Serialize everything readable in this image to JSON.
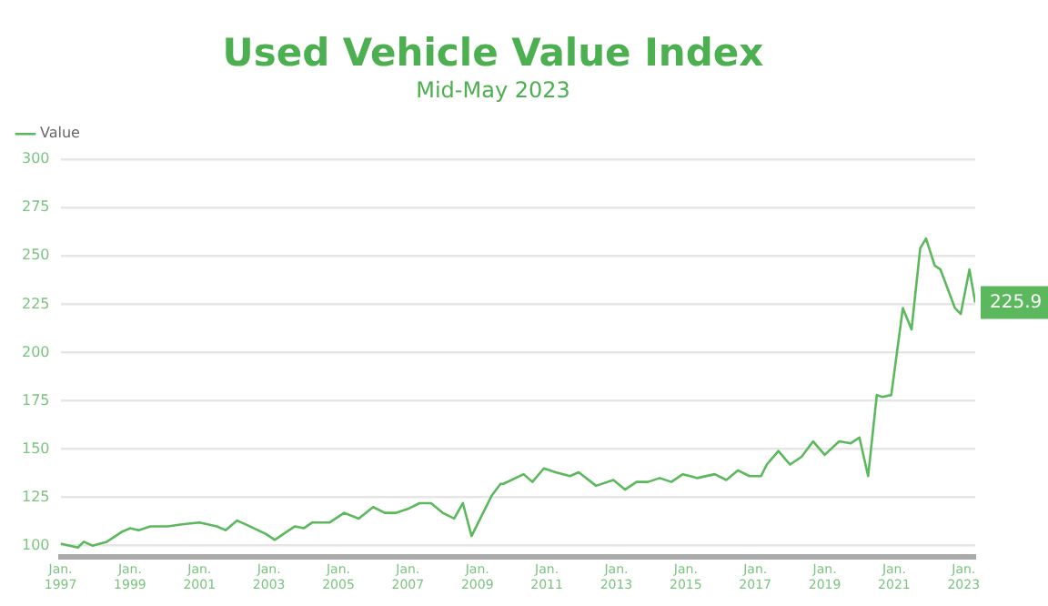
{
  "chart_data": {
    "type": "line",
    "title": "Used Vehicle Value Index",
    "subtitle": "Mid-May 2023",
    "x": [
      "1997-01",
      "1997-07",
      "1997-09",
      "1997-12",
      "1998-05",
      "1998-10",
      "1999-01",
      "1999-04",
      "1999-08",
      "2000-02",
      "2000-07",
      "2001-01",
      "2001-07",
      "2001-10",
      "2002-02",
      "2002-05",
      "2002-12",
      "2003-03",
      "2003-06",
      "2003-10",
      "2004-01",
      "2004-04",
      "2004-10",
      "2005-03",
      "2005-08",
      "2006-01",
      "2006-05",
      "2006-09",
      "2007-01",
      "2007-05",
      "2007-09",
      "2008-01",
      "2008-05",
      "2008-08",
      "2008-11",
      "2009-02",
      "2009-06",
      "2009-09",
      "2009-10",
      "2010-05",
      "2010-08",
      "2010-12",
      "2011-04",
      "2011-09",
      "2011-12",
      "2012-06",
      "2012-12",
      "2013-04",
      "2013-08",
      "2013-12",
      "2014-04",
      "2014-08",
      "2014-12",
      "2015-05",
      "2015-11",
      "2016-03",
      "2016-07",
      "2016-11",
      "2017-03",
      "2017-05",
      "2017-09",
      "2018-01",
      "2018-05",
      "2018-09",
      "2019-01",
      "2019-06",
      "2019-10",
      "2020-01",
      "2020-04",
      "2020-07",
      "2020-09",
      "2020-12",
      "2021-04",
      "2021-07",
      "2021-10",
      "2021-12",
      "2022-03",
      "2022-05",
      "2022-10",
      "2022-12",
      "2023-03",
      "2023-05"
    ],
    "series": [
      {
        "name": "Value",
        "color": "#5cb85c",
        "values": [
          101,
          99,
          102,
          100,
          102,
          107,
          109,
          108,
          110,
          110,
          111,
          112,
          110,
          108,
          113,
          111,
          106,
          103,
          106,
          110,
          109,
          112,
          112,
          117,
          114,
          120,
          117,
          117,
          119,
          122,
          122,
          117,
          114,
          122,
          105,
          114,
          126,
          132,
          132,
          137,
          133,
          140,
          138,
          136,
          138,
          131,
          134,
          129,
          133,
          133,
          135,
          133,
          137,
          135,
          137,
          134,
          139,
          136,
          136,
          142,
          149,
          142,
          146,
          154,
          147,
          154,
          153,
          156,
          136,
          178,
          177,
          178,
          223,
          212,
          254,
          259,
          245,
          243,
          223,
          220,
          243,
          225.9
        ],
        "value_labels": [
          null,
          null,
          null,
          null,
          null,
          null,
          null,
          null,
          null,
          null,
          null,
          null,
          null,
          null,
          null,
          null,
          null,
          null,
          null,
          null,
          null,
          null,
          null,
          null,
          null,
          null,
          null,
          null,
          null,
          null,
          null,
          null,
          null,
          null,
          null,
          null,
          null,
          null,
          null,
          null,
          null,
          null,
          null,
          null,
          null,
          null,
          null,
          null,
          null,
          null,
          null,
          null,
          null,
          null,
          null,
          null,
          null,
          null,
          null,
          null,
          null,
          null,
          null,
          null,
          null,
          null,
          null,
          null,
          null,
          null,
          null,
          null,
          null,
          null,
          null,
          null,
          null,
          null,
          null,
          null,
          null,
          "225.9"
        ]
      }
    ],
    "xlim": [
      "1997-01",
      "2023-05"
    ],
    "xticks": [
      {
        "value": "1997-01",
        "label": "Jan. 1997"
      },
      {
        "value": "1999-01",
        "label": "Jan. 1999"
      },
      {
        "value": "2001-01",
        "label": "Jan. 2001"
      },
      {
        "value": "2003-01",
        "label": "Jan. 2003"
      },
      {
        "value": "2005-01",
        "label": "Jan. 2005"
      },
      {
        "value": "2007-01",
        "label": "Jan. 2007"
      },
      {
        "value": "2009-01",
        "label": "Jan. 2009"
      },
      {
        "value": "2011-01",
        "label": "Jan. 2011"
      },
      {
        "value": "2013-01",
        "label": "Jan. 2013"
      },
      {
        "value": "2015-01",
        "label": "Jan. 2015"
      },
      {
        "value": "2017-01",
        "label": "Jan. 2017"
      },
      {
        "value": "2019-01",
        "label": "Jan. 2019"
      },
      {
        "value": "2021-01",
        "label": "Jan. 2021"
      },
      {
        "value": "2023-01",
        "label": "Jan. 2023"
      }
    ],
    "ylim": [
      94,
      300
    ],
    "yticks": [
      100,
      125,
      150,
      175,
      200,
      225,
      250,
      275,
      300
    ],
    "grid": "y",
    "legend": "top left",
    "marker": "none",
    "line_style": "solid"
  }
}
